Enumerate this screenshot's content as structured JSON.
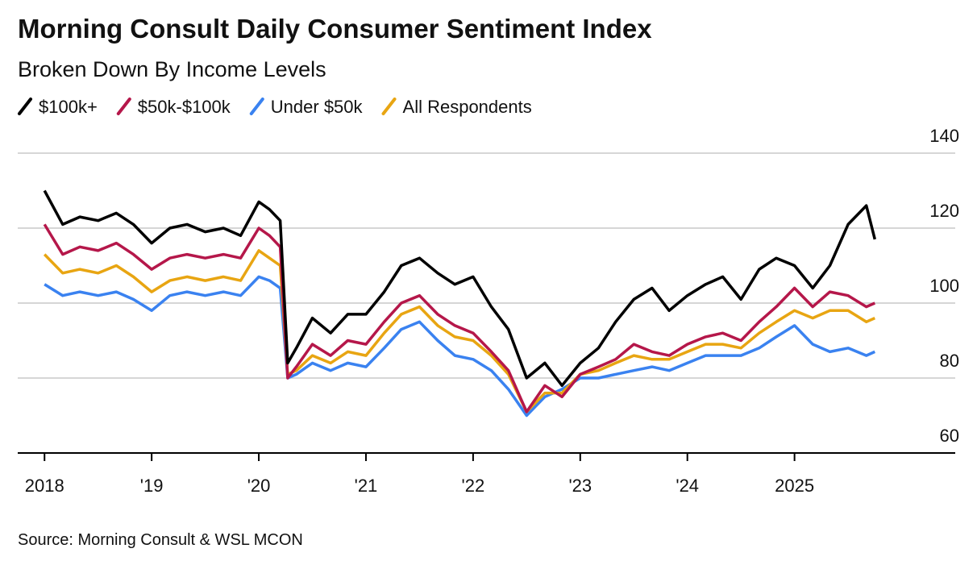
{
  "chart_data": {
    "type": "line",
    "title": "Morning Consult Daily Consumer Sentiment Index",
    "subtitle": "Broken Down By Income Levels",
    "source": "Source: Morning Consult & WSL MCON",
    "x": [
      2018,
      2018.17,
      2018.33,
      2018.5,
      2018.67,
      2018.83,
      2019,
      2019.17,
      2019.33,
      2019.5,
      2019.67,
      2019.83,
      2020,
      2020.1,
      2020.2,
      2020.27,
      2020.35,
      2020.5,
      2020.67,
      2020.83,
      2021,
      2021.17,
      2021.33,
      2021.5,
      2021.67,
      2021.83,
      2022,
      2022.17,
      2022.33,
      2022.5,
      2022.67,
      2022.83,
      2023,
      2023.17,
      2023.33,
      2023.5,
      2023.67,
      2023.83,
      2024,
      2024.17,
      2024.33,
      2024.5,
      2024.67,
      2024.83,
      2025,
      2025.17,
      2025.33,
      2025.5,
      2025.67,
      2025.75
    ],
    "series": [
      {
        "name": "$100k+",
        "color": "#000000",
        "values": [
          130,
          121,
          123,
          122,
          124,
          121,
          116,
          120,
          121,
          119,
          120,
          118,
          127,
          125,
          122,
          84,
          88,
          96,
          92,
          97,
          97,
          103,
          110,
          112,
          108,
          105,
          107,
          99,
          93,
          80,
          84,
          78,
          84,
          88,
          95,
          101,
          104,
          98,
          102,
          105,
          107,
          101,
          109,
          112,
          110,
          104,
          110,
          121,
          126,
          117
        ]
      },
      {
        "name": "$50k-$100k",
        "color": "#b5174a",
        "values": [
          121,
          113,
          115,
          114,
          116,
          113,
          109,
          112,
          113,
          112,
          113,
          112,
          120,
          118,
          115,
          80,
          83,
          89,
          86,
          90,
          89,
          95,
          100,
          102,
          97,
          94,
          92,
          87,
          82,
          71,
          78,
          75,
          81,
          83,
          85,
          89,
          87,
          86,
          89,
          91,
          92,
          90,
          95,
          99,
          104,
          99,
          103,
          102,
          99,
          100
        ]
      },
      {
        "name": "Under $50k",
        "color": "#3a82f0",
        "values": [
          105,
          102,
          103,
          102,
          103,
          101,
          98,
          102,
          103,
          102,
          103,
          102,
          107,
          106,
          104,
          80,
          81,
          84,
          82,
          84,
          83,
          88,
          93,
          95,
          90,
          86,
          85,
          82,
          77,
          70,
          75,
          77,
          80,
          80,
          81,
          82,
          83,
          82,
          84,
          86,
          86,
          86,
          88,
          91,
          94,
          89,
          87,
          88,
          86,
          87
        ]
      },
      {
        "name": "All Respondents",
        "color": "#e8a512",
        "values": [
          113,
          108,
          109,
          108,
          110,
          107,
          103,
          106,
          107,
          106,
          107,
          106,
          114,
          112,
          110,
          81,
          82,
          86,
          84,
          87,
          86,
          92,
          97,
          99,
          94,
          91,
          90,
          86,
          81,
          71,
          76,
          76,
          81,
          82,
          84,
          86,
          85,
          85,
          87,
          89,
          89,
          88,
          92,
          95,
          98,
          96,
          98,
          98,
          95,
          96
        ]
      }
    ],
    "xlim": [
      2017.75,
      2026.5
    ],
    "xticks": [
      {
        "value": 2018,
        "label": "2018"
      },
      {
        "value": 2019,
        "label": "'19"
      },
      {
        "value": 2020,
        "label": "'20"
      },
      {
        "value": 2021,
        "label": "'21"
      },
      {
        "value": 2022,
        "label": "'22"
      },
      {
        "value": 2023,
        "label": "'23"
      },
      {
        "value": 2024,
        "label": "'24"
      },
      {
        "value": 2025,
        "label": "2025"
      }
    ],
    "ylim": [
      60,
      140
    ],
    "yticks": [
      60,
      80,
      100,
      120,
      140
    ],
    "grid": true
  }
}
